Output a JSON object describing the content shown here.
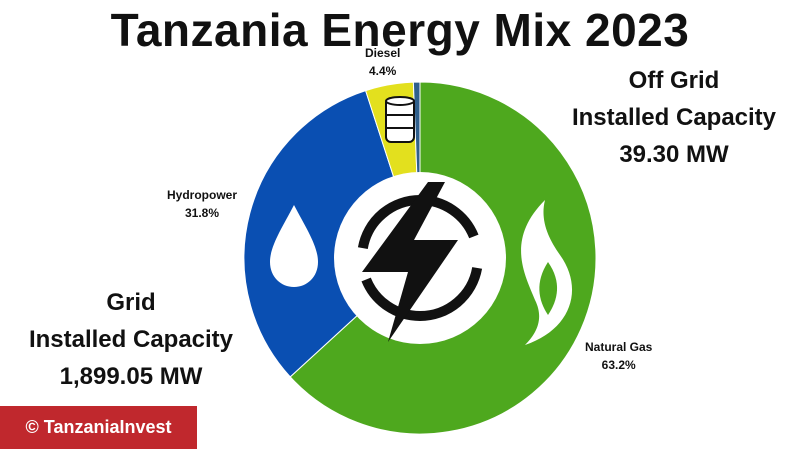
{
  "chart_data": {
    "type": "pie",
    "title": "Tanzania Energy Mix 2023",
    "slices": [
      {
        "name": "Natural Gas",
        "value": 63.2,
        "label": "63.2%",
        "color": "#4ea81e",
        "icon": "flame-icon"
      },
      {
        "name": "Hydropower",
        "value": 31.8,
        "label": "31.8%",
        "color": "#0a4fb2",
        "icon": "water-drop-icon"
      },
      {
        "name": "Diesel",
        "value": 4.4,
        "label": "4.4%",
        "color": "#e3e01e",
        "icon": "oil-barrel-icon"
      },
      {
        "name": "",
        "value": 0.6,
        "label": "",
        "color": "#2f5f8c",
        "icon": ""
      }
    ],
    "center_icon": "lightning-bolt-icon"
  },
  "annotations": {
    "off_grid": {
      "line1": "Off Grid",
      "line2": "Installed Capacity",
      "line3": "39.30 MW"
    },
    "grid": {
      "line1": "Grid",
      "line2": "Installed Capacity",
      "line3": "1,899.05 MW"
    }
  },
  "credit": {
    "text": "© TanzaniaInvest",
    "color": "#c0282d"
  }
}
